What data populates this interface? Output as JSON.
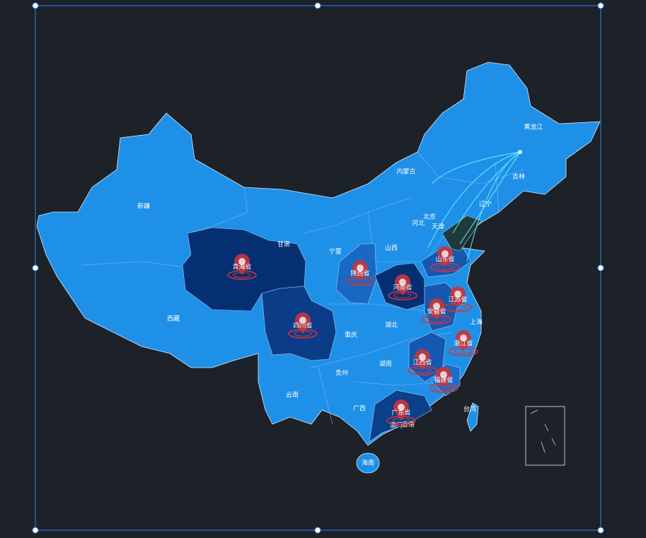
{
  "map": {
    "regions": [
      "黑龙江",
      "吉林",
      "辽宁",
      "内蒙古",
      "新疆",
      "甘肃",
      "宁夏",
      "山西",
      "河北",
      "北京",
      "天津",
      "西藏",
      "湖北",
      "重庆",
      "贵州",
      "湖南",
      "云南",
      "广西",
      "上海",
      "台湾",
      "海南",
      "澳门",
      "香港"
    ],
    "markers": [
      "青海省",
      "陕西省",
      "河南省",
      "山东省",
      "江苏省",
      "安徽省",
      "四川省",
      "浙江省",
      "江西省",
      "福建省",
      "广东省"
    ]
  }
}
